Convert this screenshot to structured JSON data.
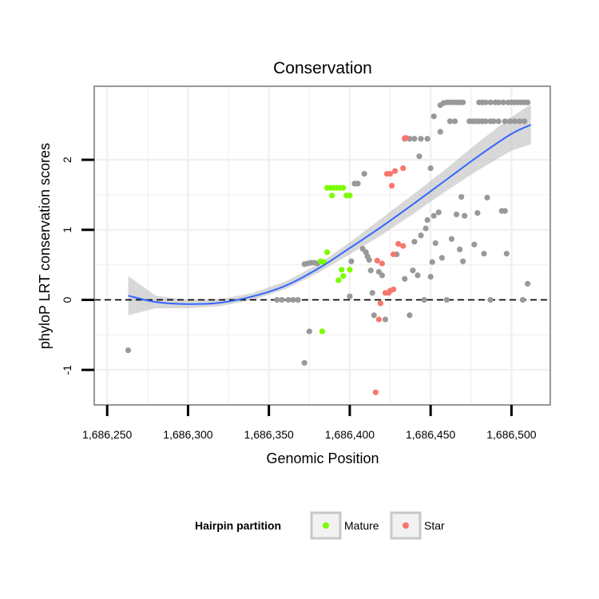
{
  "chart_data": {
    "type": "scatter",
    "title": "Conservation",
    "xlabel": "Genomic Position",
    "ylabel": "phyloP LRT conservation scores",
    "xlim": [
      1686242,
      1686524
    ],
    "ylim": [
      -1.5,
      3.05
    ],
    "x_ticks": [
      1686250,
      1686300,
      1686350,
      1686400,
      1686450,
      1686500
    ],
    "x_tick_labels": [
      "1,686,250",
      "1,686,300",
      "1,686,350",
      "1,686,400",
      "1,686,450",
      "1,686,500"
    ],
    "y_ticks": [
      -1,
      0,
      1,
      2
    ],
    "y_tick_labels": [
      "-1",
      "0",
      "1",
      "2"
    ],
    "reference_line": {
      "y": 0,
      "style": "dashed"
    },
    "colors": {
      "other": "#999999",
      "Mature": "#7CFC00",
      "Star": "#F8766D",
      "smooth": "#3366FF",
      "ribbon": "#BEBEBE",
      "panel_border": "#7F7F7F",
      "grid": "#F0F0F0"
    },
    "legend": {
      "title": "Hairpin partition",
      "position": "bottom",
      "entries": [
        "Mature",
        "Star"
      ]
    },
    "series": [
      {
        "name": "Other",
        "points": [
          [
            1686263,
            -0.72
          ],
          [
            1686372,
            -0.9
          ],
          [
            1686375,
            -0.45
          ],
          [
            1686355,
            0.0
          ],
          [
            1686358,
            0.0
          ],
          [
            1686362,
            0.0
          ],
          [
            1686365,
            0.0
          ],
          [
            1686368,
            0.0
          ],
          [
            1686372,
            0.51
          ],
          [
            1686374,
            0.52
          ],
          [
            1686376,
            0.53
          ],
          [
            1686378,
            0.53
          ],
          [
            1686380,
            0.52
          ],
          [
            1686400,
            0.05
          ],
          [
            1686401,
            0.55
          ],
          [
            1686403,
            1.66
          ],
          [
            1686405,
            1.66
          ],
          [
            1686408,
            0.73
          ],
          [
            1686409,
            1.8
          ],
          [
            1686410,
            0.68
          ],
          [
            1686411,
            0.62
          ],
          [
            1686412,
            0.57
          ],
          [
            1686413,
            0.42
          ],
          [
            1686415,
            -0.22
          ],
          [
            1686418,
            0.4
          ],
          [
            1686420,
            0.35
          ],
          [
            1686422,
            -0.28
          ],
          [
            1686414,
            0.1
          ],
          [
            1686429,
            0.65
          ],
          [
            1686434,
            0.3
          ],
          [
            1686437,
            -0.22
          ],
          [
            1686439,
            0.42
          ],
          [
            1686440,
            0.83
          ],
          [
            1686442,
            0.35
          ],
          [
            1686443,
            2.05
          ],
          [
            1686444,
            0.92
          ],
          [
            1686446,
            0.0
          ],
          [
            1686447,
            1.02
          ],
          [
            1686448,
            1.14
          ],
          [
            1686450,
            0.33
          ],
          [
            1686451,
            0.54
          ],
          [
            1686452,
            1.2
          ],
          [
            1686453,
            0.81
          ],
          [
            1686455,
            1.25
          ],
          [
            1686456,
            2.4
          ],
          [
            1686457,
            0.6
          ],
          [
            1686460,
            0.0
          ],
          [
            1686463,
            0.87
          ],
          [
            1686466,
            1.22
          ],
          [
            1686468,
            0.72
          ],
          [
            1686469,
            1.47
          ],
          [
            1686470,
            0.55
          ],
          [
            1686471,
            1.2
          ],
          [
            1686477,
            0.79
          ],
          [
            1686479,
            1.24
          ],
          [
            1686483,
            0.66
          ],
          [
            1686485,
            1.46
          ],
          [
            1686487,
            0.0
          ],
          [
            1686494,
            1.27
          ],
          [
            1686496,
            1.27
          ],
          [
            1686497,
            0.66
          ],
          [
            1686507,
            0.0
          ],
          [
            1686510,
            0.23
          ],
          [
            1686434,
            2.3
          ],
          [
            1686437,
            2.3
          ],
          [
            1686440,
            2.3
          ],
          [
            1686444,
            2.3
          ],
          [
            1686448,
            2.3
          ],
          [
            1686450,
            1.88
          ],
          [
            1686452,
            2.62
          ],
          [
            1686456,
            2.78
          ],
          [
            1686458,
            2.81
          ],
          [
            1686460,
            2.82
          ],
          [
            1686462,
            2.82
          ],
          [
            1686464,
            2.82
          ],
          [
            1686466,
            2.82
          ],
          [
            1686468,
            2.82
          ],
          [
            1686470,
            2.82
          ],
          [
            1686462,
            2.55
          ],
          [
            1686465,
            2.55
          ],
          [
            1686474,
            2.55
          ],
          [
            1686476,
            2.55
          ],
          [
            1686478,
            2.55
          ],
          [
            1686480,
            2.55
          ],
          [
            1686482,
            2.55
          ],
          [
            1686484,
            2.55
          ],
          [
            1686487,
            2.55
          ],
          [
            1686489,
            2.55
          ],
          [
            1686492,
            2.55
          ],
          [
            1686496,
            2.55
          ],
          [
            1686499,
            2.55
          ],
          [
            1686502,
            2.55
          ],
          [
            1686505,
            2.55
          ],
          [
            1686508,
            2.55
          ],
          [
            1686480,
            2.82
          ],
          [
            1686482,
            2.82
          ],
          [
            1686484,
            2.82
          ],
          [
            1686487,
            2.82
          ],
          [
            1686490,
            2.82
          ],
          [
            1686492,
            2.82
          ],
          [
            1686495,
            2.82
          ],
          [
            1686498,
            2.82
          ],
          [
            1686500,
            2.82
          ],
          [
            1686502,
            2.82
          ],
          [
            1686504,
            2.82
          ],
          [
            1686506,
            2.82
          ],
          [
            1686508,
            2.82
          ],
          [
            1686510,
            2.82
          ]
        ]
      },
      {
        "name": "Mature",
        "points": [
          [
            1686383,
            -0.45
          ],
          [
            1686382,
            0.55
          ],
          [
            1686384,
            0.54
          ],
          [
            1686386,
            0.68
          ],
          [
            1686386,
            1.6
          ],
          [
            1686388,
            1.6
          ],
          [
            1686390,
            1.6
          ],
          [
            1686392,
            1.6
          ],
          [
            1686394,
            1.6
          ],
          [
            1686396,
            1.6
          ],
          [
            1686389,
            1.49
          ],
          [
            1686398,
            1.49
          ],
          [
            1686400,
            1.49
          ],
          [
            1686395,
            0.43
          ],
          [
            1686400,
            0.43
          ],
          [
            1686393,
            0.28
          ],
          [
            1686396,
            0.34
          ]
        ]
      },
      {
        "name": "Star",
        "points": [
          [
            1686416,
            -1.32
          ],
          [
            1686418,
            -0.28
          ],
          [
            1686419,
            -0.05
          ],
          [
            1686417,
            0.56
          ],
          [
            1686420,
            0.52
          ],
          [
            1686422,
            0.1
          ],
          [
            1686424,
            0.1
          ],
          [
            1686425,
            0.13
          ],
          [
            1686427,
            0.15
          ],
          [
            1686426,
            1.63
          ],
          [
            1686423,
            1.8
          ],
          [
            1686425,
            1.8
          ],
          [
            1686428,
            1.84
          ],
          [
            1686433,
            1.88
          ],
          [
            1686427,
            0.65
          ],
          [
            1686430,
            0.8
          ],
          [
            1686433,
            0.77
          ],
          [
            1686434,
            2.31
          ],
          [
            1686435,
            2.31
          ]
        ]
      }
    ],
    "smooth": {
      "method": "loess",
      "x": [
        1686263,
        1686280,
        1686300,
        1686320,
        1686340,
        1686360,
        1686380,
        1686400,
        1686420,
        1686440,
        1686460,
        1686480,
        1686500,
        1686512
      ],
      "y": [
        0.06,
        -0.03,
        -0.06,
        -0.04,
        0.05,
        0.2,
        0.44,
        0.74,
        1.05,
        1.38,
        1.72,
        2.06,
        2.37,
        2.5
      ],
      "lo": [
        -0.22,
        -0.12,
        -0.12,
        -0.09,
        0.0,
        0.15,
        0.38,
        0.65,
        0.93,
        1.24,
        1.56,
        1.86,
        2.13,
        2.22
      ],
      "hi": [
        0.34,
        0.06,
        0.0,
        0.01,
        0.1,
        0.26,
        0.5,
        0.82,
        1.17,
        1.52,
        1.88,
        2.26,
        2.61,
        2.79
      ]
    }
  }
}
